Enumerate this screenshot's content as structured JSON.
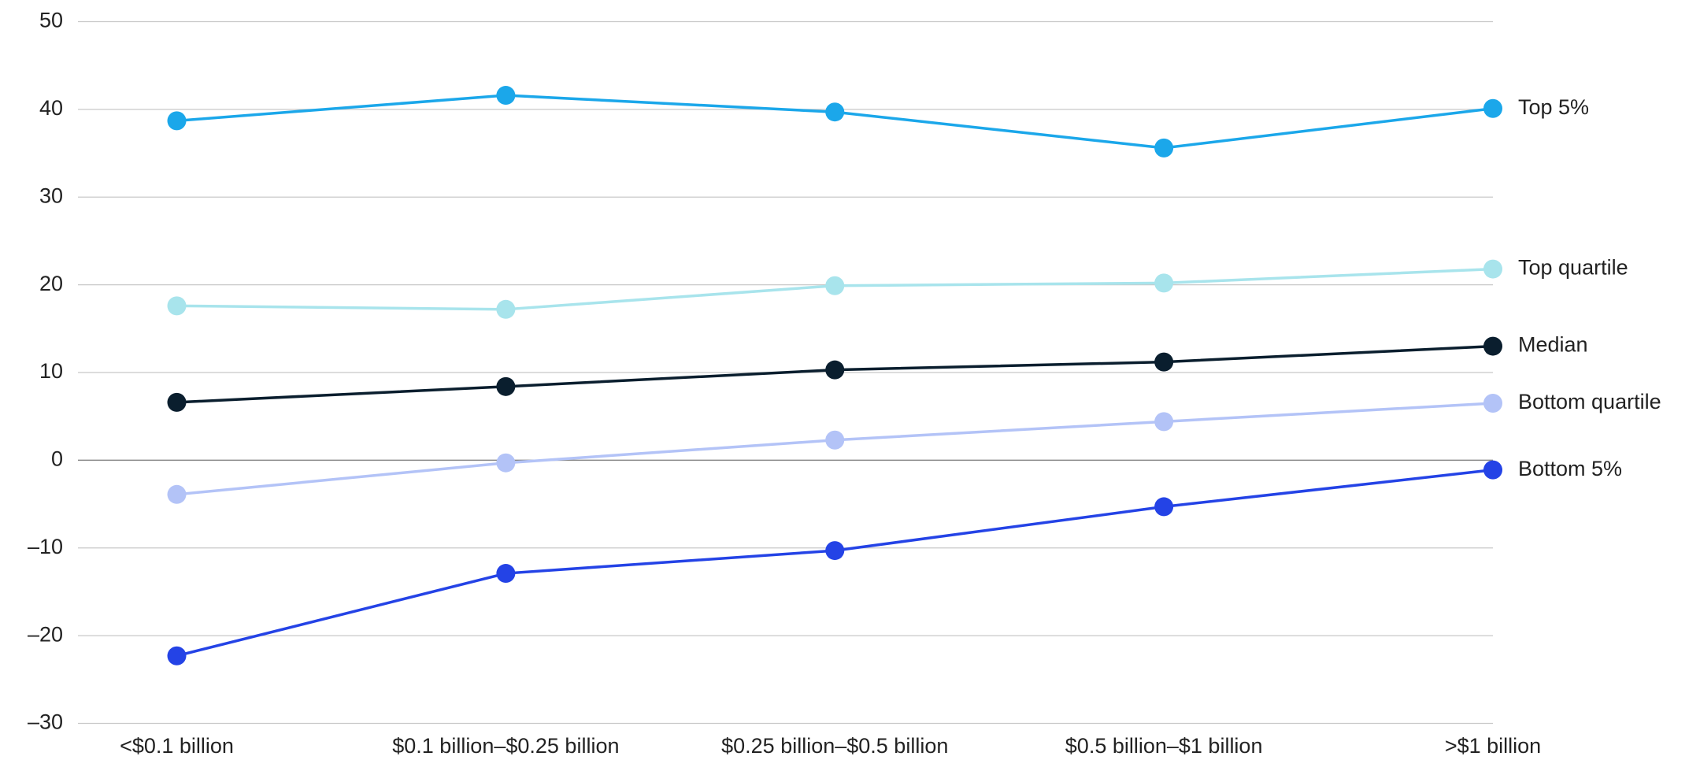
{
  "chart_data": {
    "type": "line",
    "categories": [
      "<$0.1 billion",
      "$0.1 billion–$0.25 billion",
      "$0.25 billion–$0.5 billion",
      "$0.5 billion–$1 billion",
      ">$1 billion"
    ],
    "series": [
      {
        "name": "Top 5%",
        "color": "#1ba7ea",
        "values": [
          38.7,
          41.6,
          39.7,
          35.6,
          40.1
        ]
      },
      {
        "name": "Top quartile",
        "color": "#a8e4ec",
        "values": [
          17.6,
          17.2,
          19.9,
          20.2,
          21.8
        ]
      },
      {
        "name": "Median",
        "color": "#0a1e2e",
        "values": [
          6.6,
          8.4,
          10.3,
          11.2,
          13.0
        ]
      },
      {
        "name": "Bottom quartile",
        "color": "#b3c3f7",
        "values": [
          -3.9,
          -0.3,
          2.3,
          4.4,
          6.5
        ]
      },
      {
        "name": "Bottom 5%",
        "color": "#2443e6",
        "values": [
          -22.3,
          -12.9,
          -10.3,
          -5.3,
          -1.1
        ]
      }
    ],
    "ylim": [
      -30,
      50
    ],
    "yticks": [
      {
        "value": -30,
        "label": "–30"
      },
      {
        "value": -20,
        "label": "–20"
      },
      {
        "value": -10,
        "label": "–10"
      },
      0,
      10,
      20,
      30,
      40,
      50
    ],
    "grid": true
  }
}
